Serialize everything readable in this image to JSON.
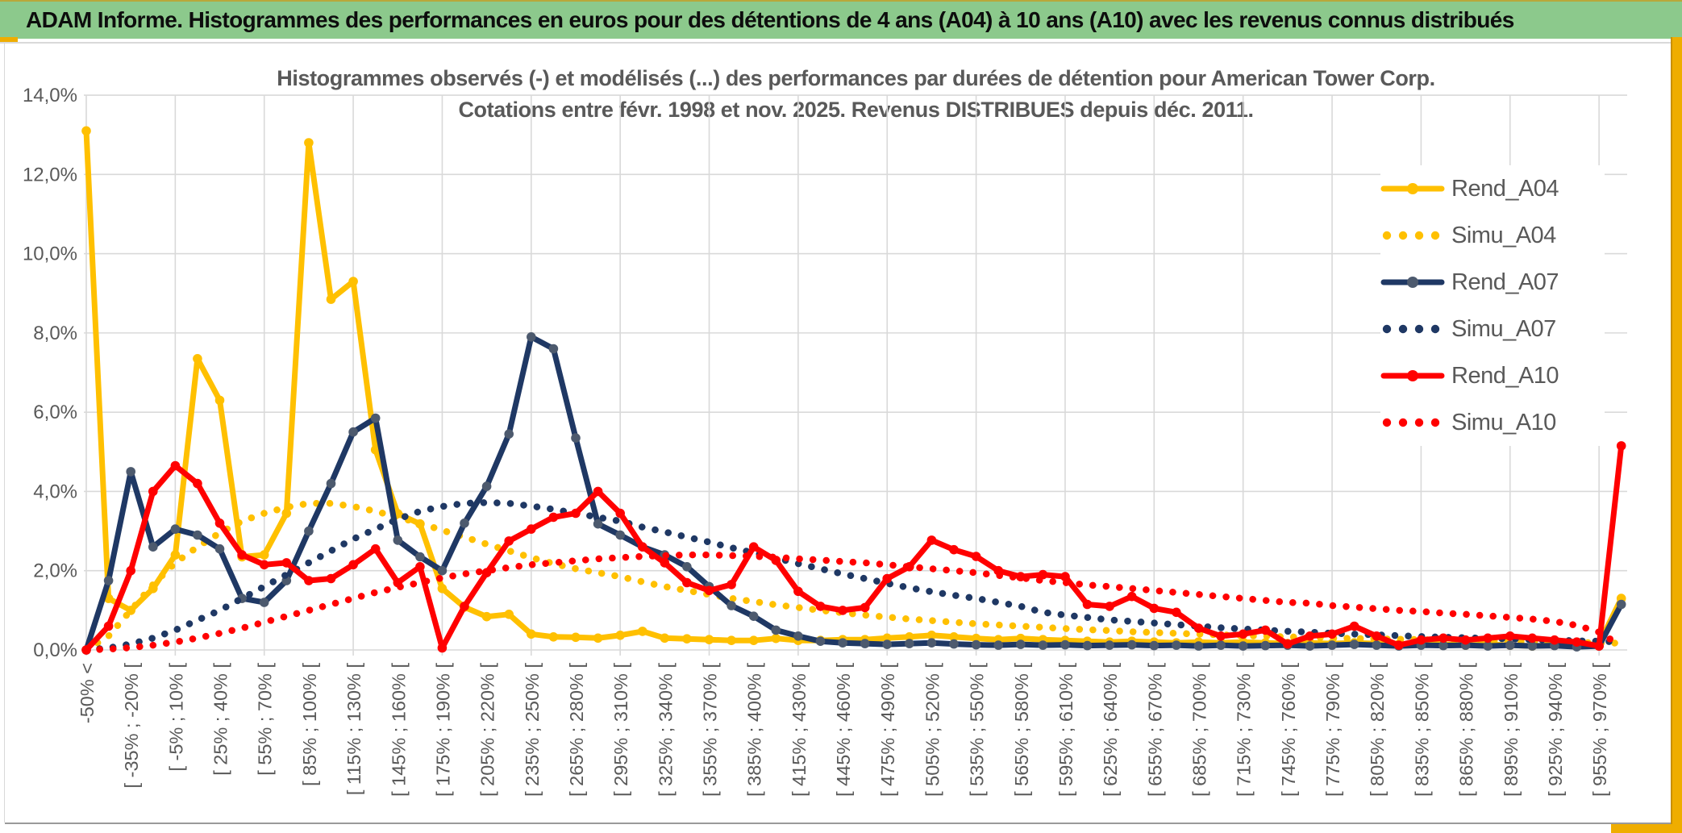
{
  "header": {
    "title": "ADAM Informe. Histogrammes des performances en euros pour des détentions de 4 ans (A04) à 10 ans (A10) avec les revenus connus distribués"
  },
  "chart": {
    "title_line1": "Histogrammes observés (-) et modélisés (...) des performances par durées de détention pour American Tower Corp.",
    "title_line2": "Cotations entre févr. 1998 et nov. 2025. Revenus DISTRIBUES depuis déc. 2011."
  },
  "colors": {
    "gold": "#FFC000",
    "navy": "#1F3864",
    "navy_marker": "#4D5A6E",
    "red": "#FF0000",
    "grid": "#D9D9D9",
    "axis_text": "#595959",
    "title_text": "#595959",
    "header_green": "#8CC98C",
    "frame_gold": "#EFAD00"
  },
  "chart_data": {
    "type": "line",
    "title": "Histogrammes observés (-) et modélisés (...) des performances par durées de détention pour American Tower Corp. Cotations entre févr. 1998 et nov. 2025. Revenus DISTRIBUES depuis déc. 2011.",
    "ylabel": "",
    "xlabel": "",
    "ylim": [
      0,
      14
    ],
    "ytick_step_pct": 2,
    "grid": true,
    "legend_position": "right-inside",
    "y_ticks": [
      "0,0%",
      "2,0%",
      "4,0%",
      "6,0%",
      "8,0%",
      "10,0%",
      "12,0%",
      "14,0%"
    ],
    "n_bins": 70,
    "x_label_every": 2,
    "x_labels": [
      "-50% <",
      "[ -35% ; -20% [",
      "[ -5% ; 10% [",
      "[ 25% ; 40% [",
      "[ 55% ; 70% [",
      "[ 85% ; 100% [",
      "[ 115% ; 130% [",
      "[ 145% ; 160% [",
      "[ 175% ; 190% [",
      "[ 205% ; 220% [",
      "[ 235% ; 250% [",
      "[ 265% ; 280% [",
      "[ 295% ; 310% [",
      "[ 325% ; 340% [",
      "[ 355% ; 370% [",
      "[ 385% ; 400% [",
      "[ 415% ; 430% [",
      "[ 445% ; 460% [",
      "[ 475% ; 490% [",
      "[ 505% ; 520% [",
      "[ 535% ; 550% [",
      "[ 565% ; 580% [",
      "[ 595% ; 610% [",
      "[ 625% ; 640% [",
      "[ 655% ; 670% [",
      "[ 685% ; 700% [",
      "[ 715% ; 730% [",
      "[ 745% ; 760% [",
      "[ 775% ; 790% [",
      "[ 805% ; 820% [",
      "[ 835% ; 850% [",
      "[ 865% ; 880% [",
      "[ 895% ; 910% [",
      "[ 925% ; 940% [",
      "[ 955% ; 970% ["
    ],
    "series": [
      {
        "name": "Rend_A04",
        "color": "#FFC000",
        "marker": "#FFC000",
        "style": "solid",
        "values": [
          13.1,
          1.3,
          1.0,
          1.55,
          2.4,
          7.35,
          6.3,
          2.35,
          2.4,
          3.45,
          12.8,
          8.85,
          9.3,
          5.05,
          3.44,
          3.18,
          1.55,
          1.08,
          0.84,
          0.9,
          0.4,
          0.33,
          0.32,
          0.3,
          0.37,
          0.47,
          0.3,
          0.28,
          0.26,
          0.24,
          0.24,
          0.29,
          0.24,
          0.24,
          0.26,
          0.26,
          0.3,
          0.33,
          0.37,
          0.33,
          0.29,
          0.26,
          0.29,
          0.26,
          0.24,
          0.22,
          0.2,
          0.22,
          0.2,
          0.18,
          0.2,
          0.18,
          0.2,
          0.18,
          0.16,
          0.18,
          0.16,
          0.18,
          0.16,
          0.14,
          0.16,
          0.14,
          0.12,
          0.14,
          0.12,
          0.1,
          0.12,
          0.1,
          0.15,
          1.3
        ]
      },
      {
        "name": "Simu_A04",
        "color": "#FFC000",
        "marker": "none",
        "style": "dotted",
        "values": [
          0.0,
          0.35,
          1.0,
          1.65,
          2.2,
          2.6,
          2.95,
          3.25,
          3.45,
          3.6,
          3.7,
          3.7,
          3.62,
          3.5,
          3.35,
          3.2,
          3.02,
          2.85,
          2.67,
          2.5,
          2.33,
          2.18,
          2.05,
          1.95,
          1.85,
          1.72,
          1.6,
          1.5,
          1.4,
          1.3,
          1.22,
          1.14,
          1.07,
          1.0,
          0.94,
          0.88,
          0.83,
          0.78,
          0.74,
          0.7,
          0.66,
          0.63,
          0.6,
          0.57,
          0.54,
          0.51,
          0.49,
          0.46,
          0.44,
          0.42,
          0.4,
          0.38,
          0.36,
          0.35,
          0.33,
          0.32,
          0.3,
          0.29,
          0.28,
          0.27,
          0.26,
          0.25,
          0.24,
          0.23,
          0.22,
          0.21,
          0.2,
          0.19,
          0.18,
          0.17
        ]
      },
      {
        "name": "Rend_A07",
        "color": "#1F3864",
        "marker": "#4D5A6E",
        "style": "solid",
        "values": [
          0.0,
          1.75,
          4.5,
          2.6,
          3.05,
          2.9,
          2.55,
          1.3,
          1.2,
          1.75,
          3.0,
          4.2,
          5.5,
          5.85,
          2.77,
          2.35,
          2.0,
          3.2,
          4.13,
          5.45,
          7.9,
          7.6,
          5.35,
          3.18,
          2.9,
          2.6,
          2.4,
          2.1,
          1.6,
          1.12,
          0.85,
          0.5,
          0.35,
          0.22,
          0.18,
          0.16,
          0.14,
          0.16,
          0.18,
          0.15,
          0.13,
          0.12,
          0.14,
          0.12,
          0.13,
          0.11,
          0.12,
          0.13,
          0.11,
          0.12,
          0.1,
          0.12,
          0.1,
          0.11,
          0.12,
          0.1,
          0.12,
          0.14,
          0.12,
          0.1,
          0.12,
          0.11,
          0.12,
          0.1,
          0.12,
          0.1,
          0.11,
          0.08,
          0.1,
          1.15
        ]
      },
      {
        "name": "Simu_A07",
        "color": "#1F3864",
        "marker": "none",
        "style": "dotted",
        "values": [
          0.0,
          0.05,
          0.15,
          0.3,
          0.5,
          0.75,
          1.0,
          1.3,
          1.6,
          1.9,
          2.2,
          2.5,
          2.8,
          3.05,
          3.3,
          3.5,
          3.62,
          3.7,
          3.72,
          3.7,
          3.63,
          3.55,
          3.45,
          3.35,
          3.25,
          3.1,
          2.98,
          2.85,
          2.72,
          2.58,
          2.45,
          2.32,
          2.18,
          2.05,
          1.92,
          1.8,
          1.68,
          1.57,
          1.47,
          1.38,
          1.3,
          1.2,
          1.1,
          0.95,
          0.88,
          0.82,
          0.76,
          0.72,
          0.68,
          0.64,
          0.6,
          0.56,
          0.53,
          0.5,
          0.47,
          0.45,
          0.42,
          0.4,
          0.38,
          0.36,
          0.34,
          0.32,
          0.31,
          0.29,
          0.28,
          0.26,
          0.25,
          0.23,
          0.22,
          0.2
        ]
      },
      {
        "name": "Rend_A10",
        "color": "#FF0000",
        "marker": "#FF0000",
        "style": "solid",
        "values": [
          0.0,
          0.6,
          2.0,
          4.0,
          4.65,
          4.2,
          3.2,
          2.4,
          2.15,
          2.2,
          1.75,
          1.8,
          2.15,
          2.55,
          1.7,
          2.1,
          0.05,
          1.1,
          1.95,
          2.75,
          3.05,
          3.35,
          3.45,
          4.0,
          3.45,
          2.6,
          2.2,
          1.7,
          1.5,
          1.65,
          2.6,
          2.26,
          1.48,
          1.1,
          1.0,
          1.07,
          1.8,
          2.1,
          2.77,
          2.53,
          2.36,
          2.0,
          1.85,
          1.9,
          1.85,
          1.15,
          1.1,
          1.35,
          1.05,
          0.95,
          0.55,
          0.35,
          0.4,
          0.5,
          0.15,
          0.35,
          0.4,
          0.6,
          0.35,
          0.12,
          0.25,
          0.3,
          0.25,
          0.3,
          0.35,
          0.3,
          0.25,
          0.2,
          0.1,
          5.15
        ]
      },
      {
        "name": "Simu_A10",
        "color": "#FF0000",
        "marker": "none",
        "style": "dotted",
        "values": [
          0.0,
          0.02,
          0.06,
          0.12,
          0.2,
          0.3,
          0.42,
          0.55,
          0.7,
          0.85,
          1.0,
          1.15,
          1.3,
          1.45,
          1.58,
          1.7,
          1.82,
          1.92,
          2.0,
          2.08,
          2.15,
          2.2,
          2.25,
          2.3,
          2.33,
          2.36,
          2.38,
          2.4,
          2.4,
          2.38,
          2.36,
          2.34,
          2.3,
          2.27,
          2.23,
          2.2,
          2.15,
          2.1,
          2.05,
          2.0,
          1.95,
          1.88,
          1.82,
          1.75,
          1.7,
          1.64,
          1.6,
          1.55,
          1.5,
          1.45,
          1.4,
          1.35,
          1.3,
          1.25,
          1.2,
          1.18,
          1.12,
          1.08,
          1.04,
          1.0,
          0.97,
          0.93,
          0.9,
          0.86,
          0.82,
          0.78,
          0.72,
          0.62,
          0.45,
          0.1
        ]
      }
    ]
  }
}
